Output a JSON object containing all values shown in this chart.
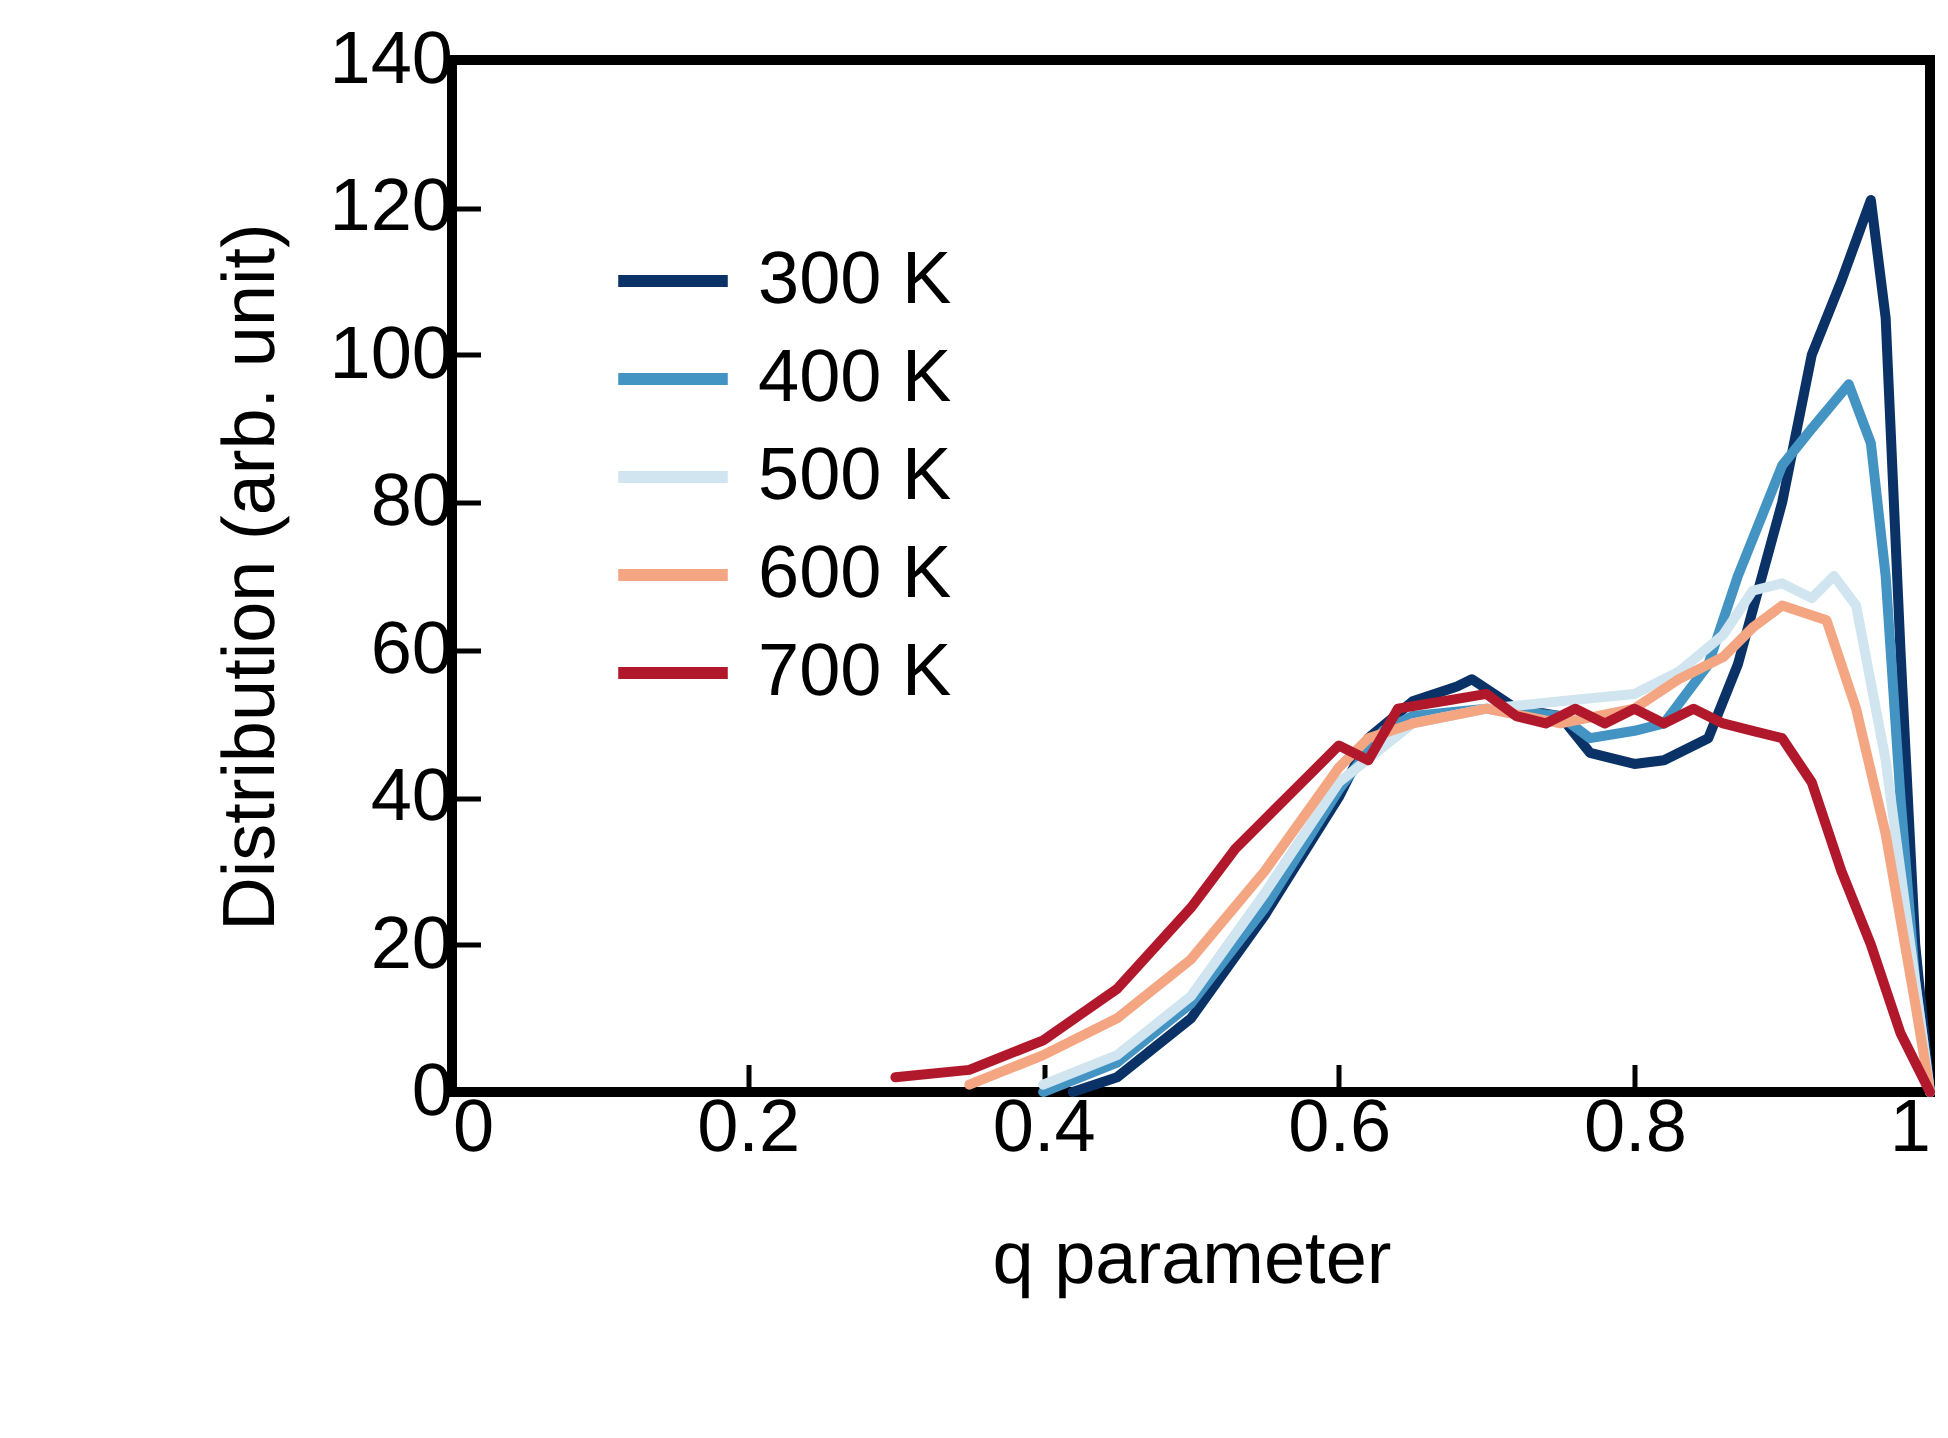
{
  "chart_data": {
    "type": "line",
    "xlabel": "q parameter",
    "ylabel": "Distribution (arb. unit)",
    "xlim": [
      0,
      1
    ],
    "ylim": [
      0,
      140
    ],
    "xticks": [
      0,
      0.2,
      0.4,
      0.6,
      0.8,
      1
    ],
    "yticks": [
      0,
      20,
      40,
      60,
      80,
      100,
      120,
      140
    ],
    "grid": false,
    "legend": "top left",
    "line_style": "solid",
    "marker": "none",
    "series": [
      {
        "name": "300 K",
        "color": "#0b3266",
        "x": [
          0.42,
          0.45,
          0.5,
          0.55,
          0.6,
          0.62,
          0.65,
          0.68,
          0.69,
          0.72,
          0.75,
          0.77,
          0.8,
          0.82,
          0.85,
          0.87,
          0.9,
          0.92,
          0.94,
          0.96,
          0.97,
          0.98,
          0.99,
          1
        ],
        "values": [
          0,
          2,
          10,
          24,
          40,
          48,
          53,
          55,
          56,
          52,
          51,
          46,
          44.5,
          45,
          48,
          58,
          80,
          100,
          110,
          121,
          105,
          60,
          20,
          0
        ]
      },
      {
        "name": "400 K",
        "color": "#4393c3",
        "x": [
          0.4,
          0.45,
          0.5,
          0.55,
          0.6,
          0.63,
          0.65,
          0.7,
          0.75,
          0.77,
          0.8,
          0.82,
          0.85,
          0.87,
          0.9,
          0.92,
          0.945,
          0.96,
          0.97,
          0.98,
          0.99,
          1
        ],
        "values": [
          0,
          4,
          12,
          25,
          41,
          49,
          51,
          52,
          51,
          48,
          49,
          50,
          58,
          70,
          85,
          90,
          96,
          88,
          70,
          40,
          15,
          0
        ]
      },
      {
        "name": "500 K",
        "color": "#d1e5f0",
        "x": [
          0.4,
          0.45,
          0.5,
          0.55,
          0.6,
          0.65,
          0.7,
          0.75,
          0.8,
          0.83,
          0.86,
          0.88,
          0.9,
          0.92,
          0.935,
          0.95,
          0.97,
          0.98,
          0.99,
          1
        ],
        "values": [
          1,
          5,
          13,
          27,
          42,
          50,
          52,
          53,
          54,
          57,
          62,
          68,
          69,
          67,
          70,
          66,
          45,
          30,
          15,
          0
        ]
      },
      {
        "name": "600 K",
        "color": "#f4a582",
        "x": [
          0.35,
          0.4,
          0.45,
          0.5,
          0.55,
          0.6,
          0.62,
          0.65,
          0.7,
          0.75,
          0.8,
          0.83,
          0.86,
          0.88,
          0.9,
          0.93,
          0.95,
          0.97,
          0.99,
          1
        ],
        "values": [
          1,
          5,
          10,
          18,
          30,
          44,
          48,
          50,
          52,
          50,
          52,
          56,
          59,
          63,
          66,
          64,
          52,
          35,
          12,
          0
        ]
      },
      {
        "name": "700 K",
        "color": "#b2182b",
        "x": [
          0.3,
          0.35,
          0.4,
          0.45,
          0.5,
          0.53,
          0.55,
          0.57,
          0.6,
          0.62,
          0.64,
          0.67,
          0.7,
          0.72,
          0.74,
          0.76,
          0.78,
          0.8,
          0.82,
          0.84,
          0.86,
          0.88,
          0.9,
          0.92,
          0.94,
          0.96,
          0.98,
          1
        ],
        "values": [
          2,
          3,
          7,
          14,
          25,
          33,
          37,
          41,
          47,
          45,
          52,
          53,
          54,
          51,
          50,
          52,
          50,
          52,
          50,
          52,
          50,
          49,
          48,
          42,
          30,
          20,
          8,
          0
        ]
      }
    ]
  }
}
